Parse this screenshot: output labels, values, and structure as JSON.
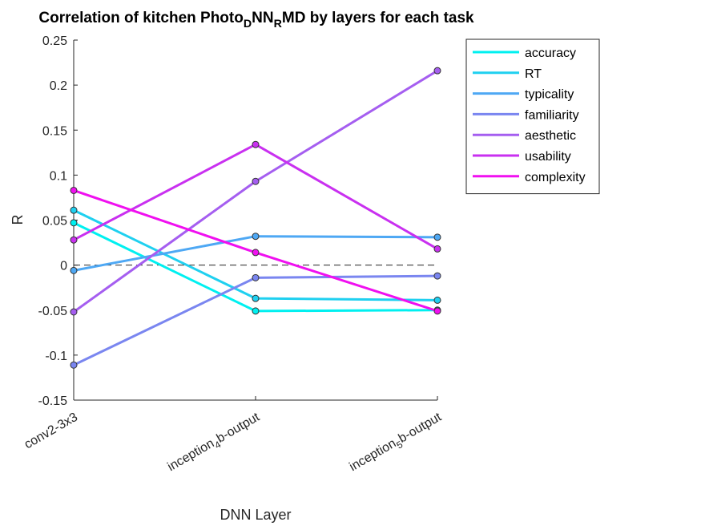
{
  "chart_data": {
    "type": "line",
    "title": {
      "parts": [
        {
          "text": "Correlation of kitchen Photo",
          "sub": false
        },
        {
          "text": "D",
          "sub": true
        },
        {
          "text": "NN",
          "sub": false
        },
        {
          "text": "R",
          "sub": true
        },
        {
          "text": "MD by layers for each task",
          "sub": false
        }
      ]
    },
    "xlabel": "DNN Layer",
    "ylabel": "R",
    "categories": [
      {
        "parts": [
          {
            "text": "conv2-3x3",
            "sub": false
          }
        ]
      },
      {
        "parts": [
          {
            "text": "inception",
            "sub": false
          },
          {
            "text": "4",
            "sub": true
          },
          {
            "text": "b-output",
            "sub": false
          }
        ]
      },
      {
        "parts": [
          {
            "text": "inception",
            "sub": false
          },
          {
            "text": "5",
            "sub": true
          },
          {
            "text": "b-output",
            "sub": false
          }
        ]
      }
    ],
    "ylim": [
      -0.15,
      0.25
    ],
    "yticks": [
      "-0.15",
      "-0.1",
      "-0.05",
      "0",
      "0.05",
      "0.1",
      "0.15",
      "0.2",
      "0.25"
    ],
    "reference_line": {
      "y": 0,
      "style": "dashed"
    },
    "legend_position": "top-right, outside plot",
    "series": [
      {
        "name": "accuracy",
        "color": "#00f0f0",
        "values": [
          0.047,
          -0.051,
          -0.05
        ]
      },
      {
        "name": "RT",
        "color": "#1fd0f0",
        "values": [
          0.061,
          -0.037,
          -0.039
        ]
      },
      {
        "name": "typicality",
        "color": "#4ea8f4",
        "values": [
          -0.006,
          0.032,
          0.031
        ]
      },
      {
        "name": "familiarity",
        "color": "#7a86f0",
        "values": [
          -0.111,
          -0.014,
          -0.012
        ]
      },
      {
        "name": "aesthetic",
        "color": "#a55ef0",
        "values": [
          -0.052,
          0.093,
          0.216
        ]
      },
      {
        "name": "usability",
        "color": "#c930f0",
        "values": [
          0.028,
          0.134,
          0.018
        ]
      },
      {
        "name": "complexity",
        "color": "#f010f0",
        "values": [
          0.083,
          0.014,
          -0.051
        ]
      }
    ]
  }
}
